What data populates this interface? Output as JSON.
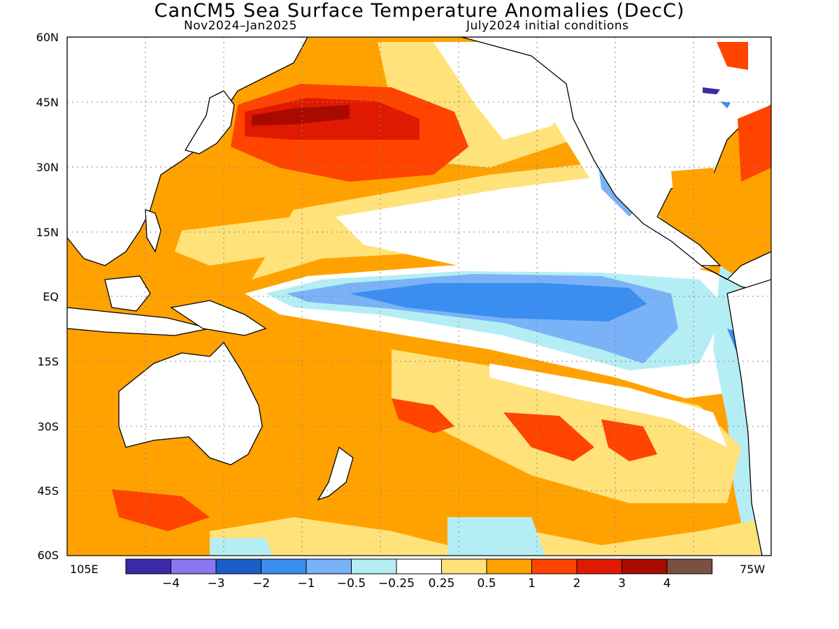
{
  "title": "CanCM5 Sea Surface Temperature Anomalies (DecC)",
  "subtitle_left": "Nov2024–Jan2025",
  "subtitle_right": "July2024 initial conditions",
  "lat_labels": [
    "60N",
    "45N",
    "30N",
    "15N",
    "EQ",
    "15S",
    "30S",
    "45S",
    "60S"
  ],
  "lon_labels": {
    "left": "105E",
    "right": "75W"
  },
  "colorbar": {
    "colors": [
      "#3a2aa8",
      "#8a76ee",
      "#1a5ec8",
      "#3a8ef0",
      "#7ab2f8",
      "#b4eef4",
      "#ffffff",
      "#ffe27a",
      "#ffa200",
      "#ff4400",
      "#e01a00",
      "#a80a00",
      "#7a5040"
    ],
    "tick_labels": [
      "−4",
      "−3",
      "−2",
      "−1",
      "−0.5",
      "−0.25",
      "0.25",
      "0.5",
      "1",
      "2",
      "3",
      "4"
    ]
  },
  "colors": {
    "strong_warm": "#a80a00",
    "warm3": "#e01a00",
    "warm2": "#ff4400",
    "warm1": "#ffa200",
    "warm05": "#ffe27a",
    "cool05": "#b4eef4",
    "cool1": "#7ab2f8",
    "cool2": "#3a8ef0",
    "land": "#ffffff",
    "coast": "#000000"
  }
}
